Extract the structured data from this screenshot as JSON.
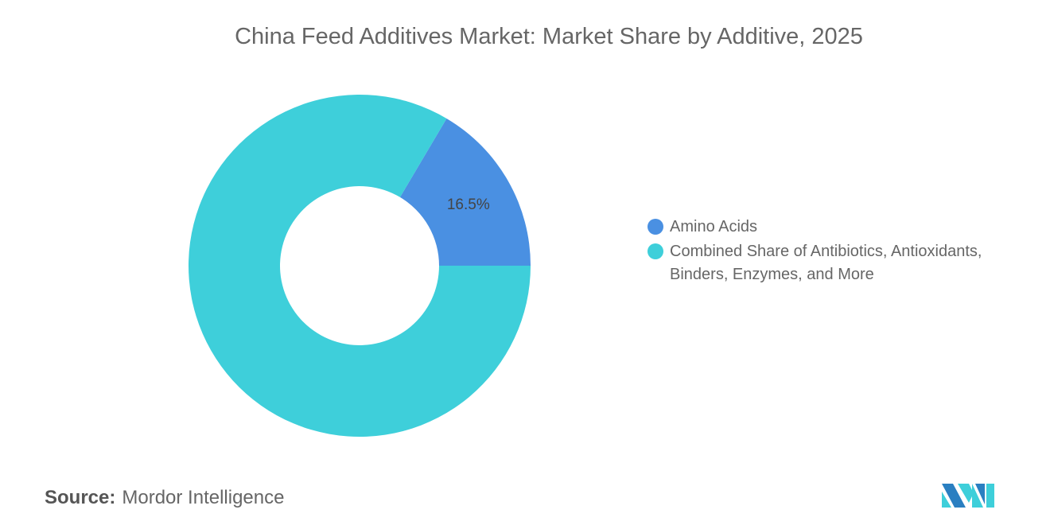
{
  "chart_data": {
    "type": "pie",
    "variant": "donut",
    "title": "China Feed Additives Market: Market Share by Additive, 2025",
    "slices": [
      {
        "label": "Amino Acids",
        "value": 16.5,
        "data_label": "16.5%",
        "color": "#4a90e2"
      },
      {
        "label": "Combined Share of Antibiotics, Antioxidants, Binders, Enzymes, and More",
        "value": 83.5,
        "data_label": "",
        "color": "#3ecfda"
      }
    ],
    "legend_position": "right"
  },
  "source": {
    "label": "Source:",
    "value": "Mordor Intelligence"
  }
}
